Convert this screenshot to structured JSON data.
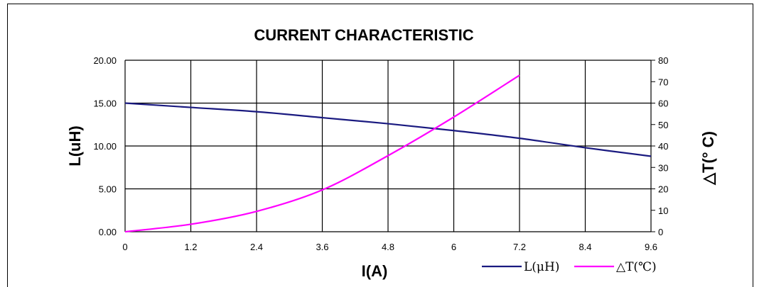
{
  "chart_data": {
    "type": "line",
    "title": "CURRENT CHARACTERISTIC",
    "xlabel": "I(A)",
    "ylabel_left": "L(uH)",
    "ylabel_right": "△T(° C)",
    "x_ticks": [
      "0",
      "1.2",
      "2.4",
      "3.6",
      "4.8",
      "6",
      "7.2",
      "8.4",
      "9.6"
    ],
    "y_left_ticks": [
      "0.00",
      "5.00",
      "10.00",
      "15.00",
      "20.00"
    ],
    "y_right_ticks": [
      "0",
      "10",
      "20",
      "30",
      "40",
      "50",
      "60",
      "70",
      "80"
    ],
    "xlim": [
      0,
      9.6
    ],
    "ylim_left": [
      0,
      20
    ],
    "ylim_right": [
      0,
      80
    ],
    "grid": true,
    "legend_position": "bottom-right",
    "series": [
      {
        "name": "L(μH)",
        "axis": "left",
        "color": "#1a1a80",
        "x": [
          0,
          1.2,
          2.4,
          3.6,
          4.8,
          6.0,
          7.2,
          8.4,
          9.6
        ],
        "values": [
          15.0,
          14.5,
          14.0,
          13.3,
          12.6,
          11.8,
          10.9,
          9.8,
          8.8
        ]
      },
      {
        "name": "△T(℃)",
        "axis": "right",
        "color": "#ff00ff",
        "x": [
          0,
          1.2,
          2.4,
          3.6,
          4.8,
          6.0,
          7.2
        ],
        "values": [
          0,
          3.5,
          9.5,
          19.5,
          35.5,
          53.5,
          73.0
        ]
      }
    ]
  }
}
